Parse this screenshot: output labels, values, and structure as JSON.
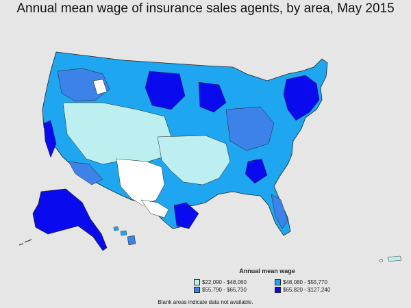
{
  "title": "Annual mean wage of insurance sales agents, by area, May 2015",
  "legend": {
    "title": "Annual mean wage",
    "items": [
      {
        "label": "$22,090 - $48,060",
        "color": "#bdeef0"
      },
      {
        "label": "$48,080 - $55,770",
        "color": "#1ea6f0"
      },
      {
        "label": "$55,790 - $65,730",
        "color": "#3c82e8"
      },
      {
        "label": "$65,820 - $127,240",
        "color": "#0a0aee"
      }
    ]
  },
  "footnote": "Blank areas indicate data not available.",
  "colors": {
    "background": "#e6e6e6",
    "no_data": "#ffffff",
    "border": "#222222"
  }
}
